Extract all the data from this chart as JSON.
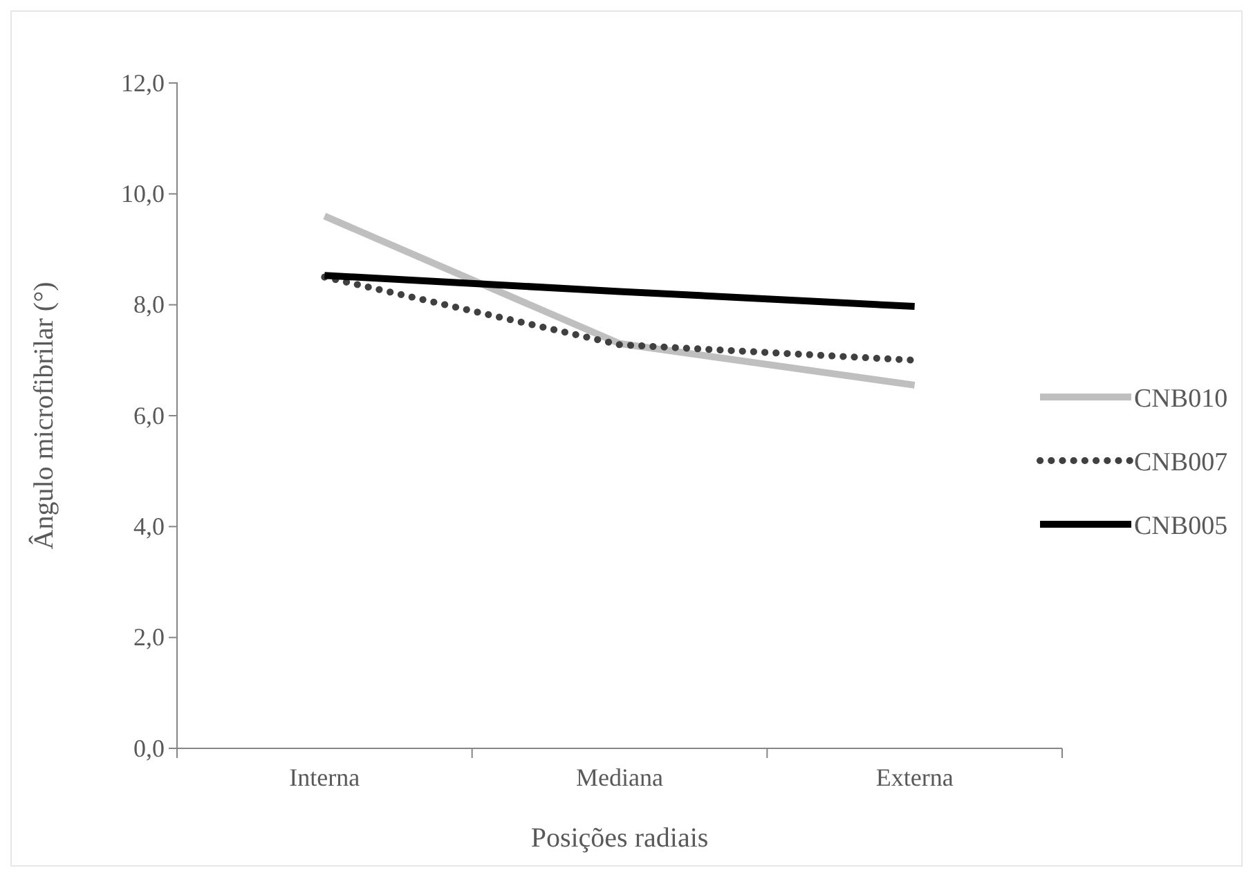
{
  "chart_data": {
    "type": "line",
    "xlabel": "Posições radiais",
    "ylabel": "Ângulo microfibrilar  (°)",
    "categories": [
      "Interna",
      "Mediana",
      "Externa"
    ],
    "series": [
      {
        "name": "CNB010",
        "color": "#bfbfbf",
        "line_style": "solid",
        "values": [
          9.6,
          7.3,
          6.55
        ]
      },
      {
        "name": "CNB007",
        "color": "#404040",
        "line_style": "dotted",
        "values": [
          8.5,
          7.28,
          7.0
        ]
      },
      {
        "name": "CNB005",
        "color": "#000000",
        "line_style": "solid",
        "values": [
          8.53,
          8.24,
          7.97
        ]
      }
    ],
    "ylim": [
      0,
      12
    ],
    "yticks": [
      {
        "value": 0,
        "label": "0,0"
      },
      {
        "value": 2,
        "label": "2,0"
      },
      {
        "value": 4,
        "label": "4,0"
      },
      {
        "value": 6,
        "label": "6,0"
      },
      {
        "value": 8,
        "label": "8,0"
      },
      {
        "value": 10,
        "label": "10,0"
      },
      {
        "value": 12,
        "label": "12,0"
      }
    ],
    "grid": false,
    "legend": "right",
    "marker": "none"
  }
}
